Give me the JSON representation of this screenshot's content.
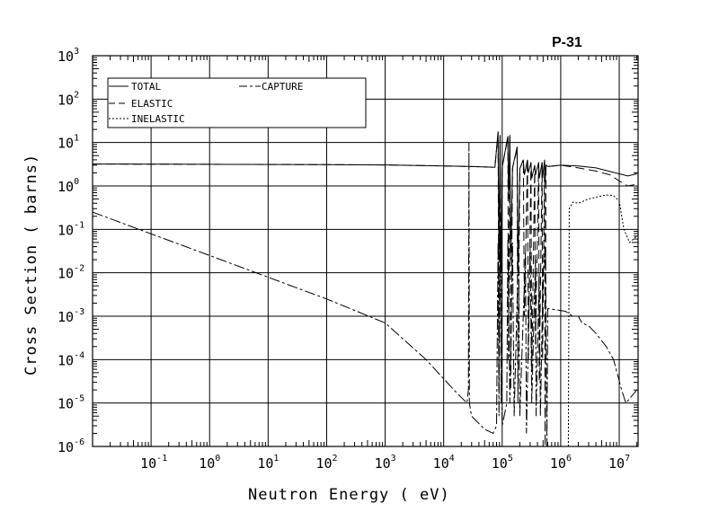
{
  "chart_data": {
    "type": "line",
    "title": "P-31",
    "xlabel": "Neutron Energy ( eV)",
    "ylabel": "Cross Section ( barns)",
    "xscale": "log",
    "yscale": "log",
    "xlim": [
      0.01,
      21000000
    ],
    "ylim": [
      1e-06,
      1000
    ],
    "grid": true,
    "legend_position": "top-left",
    "x_ticks": [
      {
        "base": "10",
        "exp": "-1",
        "v": 0.1
      },
      {
        "base": "10",
        "exp": "0",
        "v": 1
      },
      {
        "base": "10",
        "exp": "1",
        "v": 10
      },
      {
        "base": "10",
        "exp": "2",
        "v": 100
      },
      {
        "base": "10",
        "exp": "3",
        "v": 1000
      },
      {
        "base": "10",
        "exp": "4",
        "v": 10000
      },
      {
        "base": "10",
        "exp": "5",
        "v": 100000
      },
      {
        "base": "10",
        "exp": "6",
        "v": 1000000
      },
      {
        "base": "10",
        "exp": "7",
        "v": 10000000
      }
    ],
    "y_ticks": [
      {
        "base": "10",
        "exp": "3",
        "v": 1000
      },
      {
        "base": "10",
        "exp": "2",
        "v": 100
      },
      {
        "base": "10",
        "exp": "1",
        "v": 10
      },
      {
        "base": "10",
        "exp": "0",
        "v": 1
      },
      {
        "base": "10",
        "exp": "-1",
        "v": 0.1
      },
      {
        "base": "10",
        "exp": "-2",
        "v": 0.01
      },
      {
        "base": "10",
        "exp": "-3",
        "v": 0.001
      },
      {
        "base": "10",
        "exp": "-4",
        "v": 0.0001
      },
      {
        "base": "10",
        "exp": "-5",
        "v": 1e-05
      },
      {
        "base": "10",
        "exp": "-6",
        "v": 1e-06
      }
    ],
    "series": [
      {
        "name": "TOTAL",
        "style": "solid",
        "points": [
          [
            0.01,
            3.2
          ],
          [
            1,
            3.15
          ],
          [
            100,
            3.1
          ],
          [
            1000,
            3.05
          ],
          [
            10000,
            2.9
          ],
          [
            30000,
            2.8
          ],
          [
            75000,
            2.7
          ],
          [
            85000,
            18
          ],
          [
            88000,
            0.02
          ],
          [
            92000,
            15
          ],
          [
            96000,
            0.01
          ],
          [
            100000,
            2.7
          ],
          [
            125000,
            14
          ],
          [
            128000,
            0.5
          ],
          [
            135000,
            15
          ],
          [
            140000,
            0.02
          ],
          [
            150000,
            2.6
          ],
          [
            180000,
            8
          ],
          [
            185000,
            0.01
          ],
          [
            200000,
            2.5
          ],
          [
            230000,
            4
          ],
          [
            240000,
            1.8
          ],
          [
            270000,
            4
          ],
          [
            280000,
            2
          ],
          [
            310000,
            3.5
          ],
          [
            320000,
            1.5
          ],
          [
            360000,
            3
          ],
          [
            370000,
            1.8
          ],
          [
            420000,
            3.5
          ],
          [
            430000,
            1.5
          ],
          [
            480000,
            3.5
          ],
          [
            490000,
            1.5
          ],
          [
            530000,
            4
          ],
          [
            540000,
            1.2
          ],
          [
            560000,
            3
          ],
          [
            600000,
            2.8
          ],
          [
            1000000,
            3.0
          ],
          [
            2000000,
            2.9
          ],
          [
            4000000,
            2.6
          ],
          [
            10000000,
            1.9
          ],
          [
            14000000,
            1.7
          ],
          [
            20000000,
            1.9
          ]
        ]
      },
      {
        "name": "ELASTIC",
        "style": "dashed",
        "points": [
          [
            0.01,
            3.2
          ],
          [
            1,
            3.15
          ],
          [
            100,
            3.1
          ],
          [
            1000,
            3.05
          ],
          [
            10000,
            2.9
          ],
          [
            30000,
            2.8
          ],
          [
            75000,
            2.7
          ],
          [
            85000,
            17
          ],
          [
            88000,
            2e-05
          ],
          [
            92000,
            14
          ],
          [
            96000,
            1e-05
          ],
          [
            100000,
            2.7
          ],
          [
            125000,
            13
          ],
          [
            128000,
            0.0001
          ],
          [
            135000,
            14
          ],
          [
            140000,
            2e-05
          ],
          [
            150000,
            2.6
          ],
          [
            180000,
            7
          ],
          [
            185000,
            1e-05
          ],
          [
            200000,
            2.5
          ],
          [
            230000,
            4
          ],
          [
            240000,
            0.001
          ],
          [
            270000,
            4
          ],
          [
            280000,
            0.0001
          ],
          [
            310000,
            3.5
          ],
          [
            320000,
            5e-05
          ],
          [
            360000,
            3
          ],
          [
            370000,
            0.0002
          ],
          [
            420000,
            3.5
          ],
          [
            430000,
            3e-05
          ],
          [
            480000,
            3.5
          ],
          [
            490000,
            0.0001
          ],
          [
            530000,
            4
          ],
          [
            540000,
            1e-06
          ],
          [
            560000,
            3
          ],
          [
            600000,
            2.8
          ],
          [
            1000000,
            3.0
          ],
          [
            2000000,
            2.6
          ],
          [
            4000000,
            2.2
          ],
          [
            7000000,
            1.8
          ],
          [
            10000000,
            1.3
          ],
          [
            14000000,
            1.0
          ],
          [
            20000000,
            1.1
          ]
        ]
      },
      {
        "name": "INELASTIC",
        "style": "dotted",
        "points": [
          [
            1350000,
            1e-06
          ],
          [
            1400000,
            0.3
          ],
          [
            1600000,
            0.42
          ],
          [
            2000000,
            0.4
          ],
          [
            3000000,
            0.5
          ],
          [
            4000000,
            0.55
          ],
          [
            6000000,
            0.62
          ],
          [
            8000000,
            0.6
          ],
          [
            10000000,
            0.45
          ],
          [
            12000000,
            0.1
          ],
          [
            15000000,
            0.05
          ],
          [
            20000000,
            0.07
          ]
        ]
      },
      {
        "name": "CAPTURE",
        "style": "dashdot",
        "points": [
          [
            0.01,
            0.25
          ],
          [
            0.1,
            0.079
          ],
          [
            1,
            0.025
          ],
          [
            10,
            0.0079
          ],
          [
            100,
            0.0025
          ],
          [
            1000,
            0.0007
          ],
          [
            5000,
            0.0001
          ],
          [
            15000,
            2e-05
          ],
          [
            25000,
            1e-05
          ],
          [
            26500,
            2e-05
          ],
          [
            27000,
            10
          ],
          [
            27500,
            1e-05
          ],
          [
            30000,
            5e-06
          ],
          [
            50000,
            2.5e-06
          ],
          [
            70000,
            2e-06
          ],
          [
            80000,
            3e-06
          ],
          [
            85000,
            0.05
          ],
          [
            88000,
            5e-06
          ],
          [
            92000,
            0.08
          ],
          [
            100000,
            3e-06
          ],
          [
            120000,
            1e-05
          ],
          [
            125000,
            0.06
          ],
          [
            135000,
            1e-05
          ],
          [
            150000,
            0.05
          ],
          [
            160000,
            5e-06
          ],
          [
            190000,
            0.04
          ],
          [
            200000,
            5e-06
          ],
          [
            250000,
            0.03
          ],
          [
            260000,
            2e-06
          ],
          [
            300000,
            0.04
          ],
          [
            320000,
            1e-05
          ],
          [
            370000,
            0.02
          ],
          [
            380000,
            5e-06
          ],
          [
            430000,
            0.01
          ],
          [
            450000,
            5e-06
          ],
          [
            500000,
            0.01
          ],
          [
            550000,
            0.04
          ],
          [
            580000,
            1e-06
          ],
          [
            600000,
            0.0015
          ],
          [
            1200000,
            0.0013
          ],
          [
            1600000,
            0.001
          ],
          [
            2000000,
            0.001
          ],
          [
            2300000,
            0.0007
          ],
          [
            3000000,
            0.0006
          ],
          [
            4000000,
            0.0004
          ],
          [
            6000000,
            0.0002
          ],
          [
            8000000,
            0.0001
          ],
          [
            11000000,
            2e-05
          ],
          [
            13000000,
            1e-05
          ],
          [
            20000000,
            2e-05
          ]
        ]
      }
    ]
  },
  "legend": {
    "total": "TOTAL",
    "elastic": "ELASTIC",
    "inelastic": "INELASTIC",
    "capture": "CAPTURE"
  }
}
